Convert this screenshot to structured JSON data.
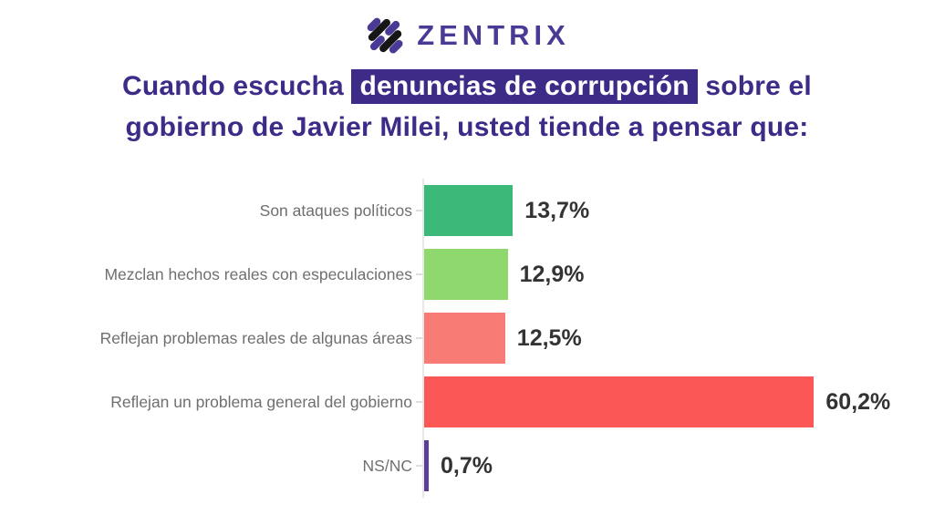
{
  "brand": {
    "name": "ZENTRIX",
    "logo_icon": "zentrix-diagonal-stripes-icon",
    "wordmark_color": "#4a3a96",
    "logo_stripe_purple": "#4a3a96",
    "logo_stripe_black": "#161616"
  },
  "title": {
    "line1_pre": "Cuando escucha ",
    "line1_highlight": "denuncias de corrupción",
    "line1_post": " sobre el",
    "line2": "gobierno de Javier Milei, usted tiende a pensar que:",
    "text_color": "#3e2b87",
    "highlight_bg": "#3e2b87",
    "highlight_text_color": "#ffffff"
  },
  "chart_data": {
    "type": "bar",
    "orientation": "horizontal",
    "title": "",
    "xlabel": "",
    "ylabel": "",
    "xlim": [
      0,
      65
    ],
    "grid": false,
    "legend": false,
    "categories": [
      "Son ataques políticos",
      "Mezclan hechos reales con especulaciones",
      "Reflejan problemas reales de algunas áreas",
      "Reflejan un problema general del gobierno",
      "NS/NC"
    ],
    "values": [
      13.7,
      12.9,
      12.5,
      60.2,
      0.7
    ],
    "value_labels": [
      "13,7%",
      "12,9%",
      "12,5%",
      "60,2%",
      "0,7%"
    ],
    "bar_colors": [
      "#3cb878",
      "#8fd86e",
      "#f97b76",
      "#fb5757",
      "#5b3e96"
    ],
    "category_label_color": "#6f6f6f",
    "value_label_color": "#333333",
    "axis_line_color": "#e8e8e8"
  }
}
